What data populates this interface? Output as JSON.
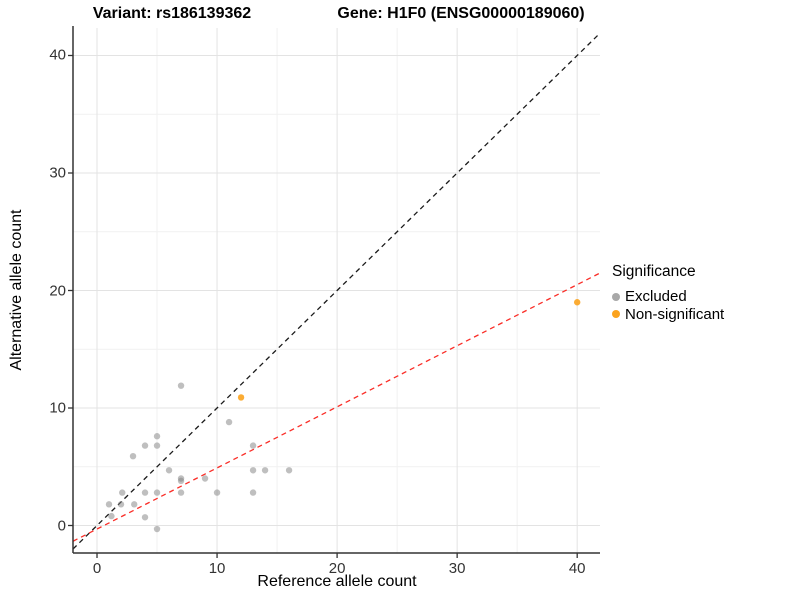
{
  "titles": {
    "variant": "Variant: rs186139362",
    "gene": "Gene: H1F0 (ENSG00000189060)"
  },
  "chart_data": {
    "type": "scatter",
    "xlabel": "Reference allele count",
    "ylabel": "Alternative allele count",
    "xlim": [
      -2,
      41.9
    ],
    "ylim": [
      -2.34,
      42.34
    ],
    "xticks": [
      0,
      10,
      20,
      30,
      40
    ],
    "yticks": [
      0,
      10,
      20,
      30,
      40
    ],
    "minor_xticks": [
      5,
      15,
      25,
      35
    ],
    "minor_yticks": [
      5,
      15,
      25,
      35
    ],
    "grid": true,
    "colors": {
      "excluded": "#808080",
      "non_significant": "#FBA31E",
      "identity_line": "#1a1a1a",
      "fit_line": "#fa2d27",
      "grid_major": "#e3e3e3",
      "grid_minor": "#f1f1f1",
      "axis": "#333333"
    },
    "series": [
      {
        "name": "Excluded",
        "color": "#808080",
        "opacity": 0.5,
        "points": [
          [
            7,
            11.9
          ],
          [
            11,
            8.8
          ],
          [
            13,
            6.8
          ],
          [
            5,
            7.6
          ],
          [
            4,
            6.8
          ],
          [
            5,
            6.8
          ],
          [
            3,
            5.9
          ],
          [
            6,
            4.7
          ],
          [
            13,
            4.7
          ],
          [
            14,
            4.7
          ],
          [
            16,
            4.7
          ],
          [
            7,
            3.8
          ],
          [
            7,
            4.0
          ],
          [
            9,
            4.0
          ],
          [
            2.1,
            2.8
          ],
          [
            4,
            2.8
          ],
          [
            5,
            2.8
          ],
          [
            7,
            2.8
          ],
          [
            10,
            2.8
          ],
          [
            13,
            2.8
          ],
          [
            1,
            1.8
          ],
          [
            2,
            1.8
          ],
          [
            3.1,
            1.8
          ],
          [
            1.2,
            0.8
          ],
          [
            4,
            0.7
          ],
          [
            5,
            -0.3
          ]
        ]
      },
      {
        "name": "Non-significant",
        "color": "#FBA31E",
        "opacity": 0.9,
        "points": [
          [
            12,
            10.9
          ],
          [
            40,
            19
          ]
        ]
      }
    ],
    "lines": [
      {
        "name": "identity-line",
        "slope": 1,
        "intercept": 0,
        "color": "#1a1a1a",
        "dash": "5 4"
      },
      {
        "name": "fit-line",
        "slope": 0.52,
        "intercept": -0.3,
        "color": "#fa2d27",
        "dash": "5 4"
      }
    ],
    "legend": {
      "title": "Significance",
      "position": "right",
      "entries": [
        {
          "label": "Excluded",
          "color": "#a8a8a8"
        },
        {
          "label": "Non-significant",
          "color": "#FBA31E"
        }
      ]
    }
  }
}
